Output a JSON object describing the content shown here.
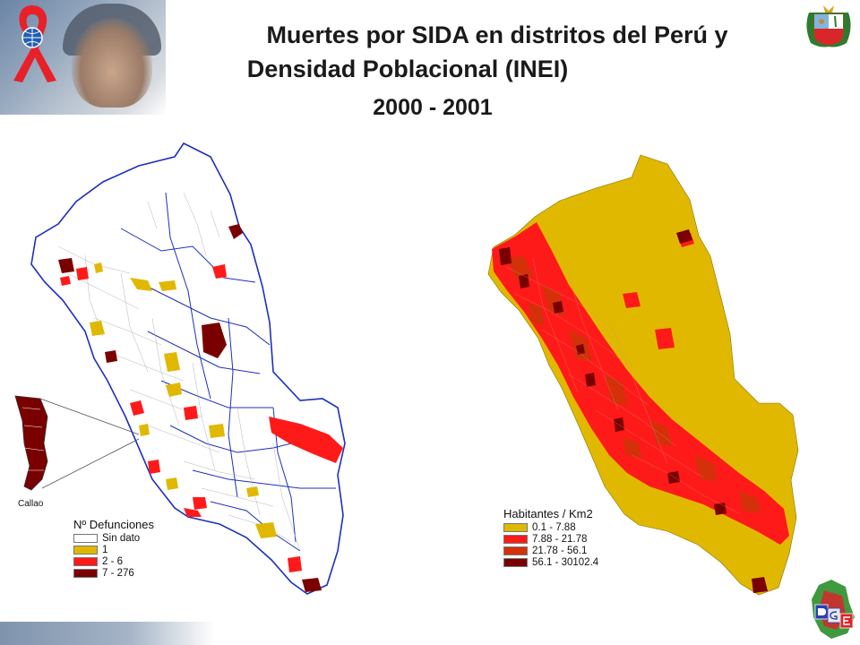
{
  "title": {
    "line1": "Muertes por SIDA en distritos del Perú y",
    "line2": "Densidad Poblacional (INEI)",
    "line3": "2000 - 2001"
  },
  "left_map": {
    "inset_label": "Callao",
    "legend": {
      "title": "Nº Defunciones",
      "items": [
        {
          "label": "Sin dato",
          "color": "#ffffff"
        },
        {
          "label": "1",
          "color": "#e1b800"
        },
        {
          "label": "2 - 6",
          "color": "#ff1a1a"
        },
        {
          "label": "7 - 276",
          "color": "#7a0000"
        }
      ]
    }
  },
  "right_map": {
    "legend": {
      "title": "Habitantes / Km2",
      "items": [
        {
          "label": "0.1 - 7.88",
          "color": "#e1b800"
        },
        {
          "label": "7.88 - 21.78",
          "color": "#ff1a1a"
        },
        {
          "label": "21.78 - 56.1",
          "color": "#d4300a"
        },
        {
          "label": "56.1 - 30102.4",
          "color": "#7a0000"
        }
      ]
    }
  },
  "icons": {
    "ribbon": "aids-ribbon-icon",
    "crest": "peru-coat-of-arms-icon",
    "logo": "dge-logo-icon"
  }
}
